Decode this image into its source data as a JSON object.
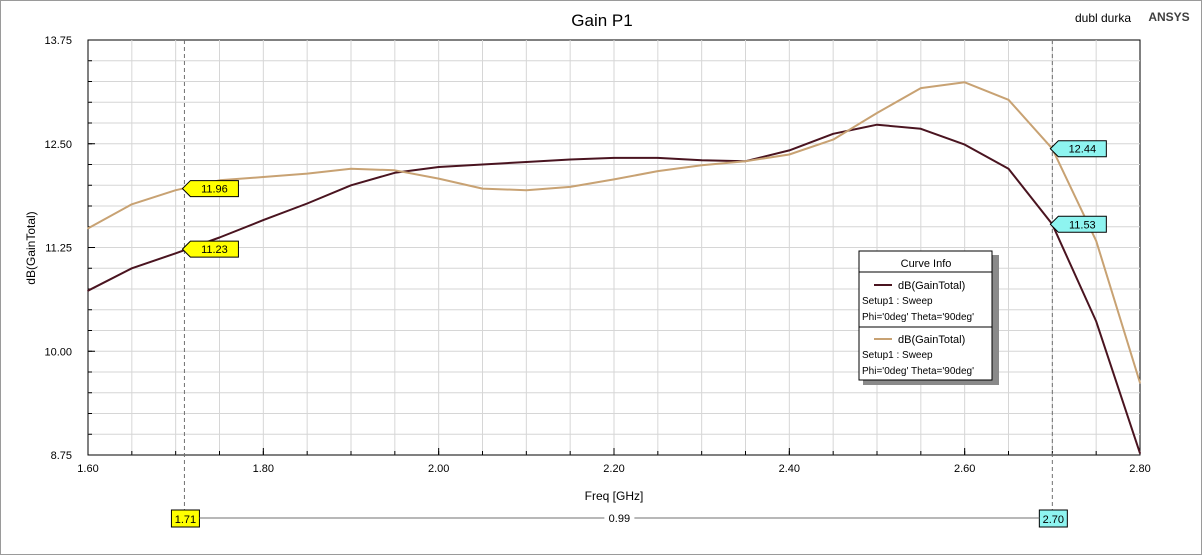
{
  "header": {
    "title": "Gain P1",
    "project_label": "dubl durka",
    "brand": "ANSYS"
  },
  "chart_data": {
    "type": "line",
    "title": "Gain P1",
    "xlabel": "Freq [GHz]",
    "ylabel": "dB(GainTotal)",
    "xlim": [
      1.6,
      2.8
    ],
    "ylim": [
      8.75,
      13.75
    ],
    "x_ticks": [
      "1.60",
      "1.80",
      "2.00",
      "2.20",
      "2.40",
      "2.60",
      "2.80"
    ],
    "y_ticks": [
      "8.75",
      "10.00",
      "11.25",
      "12.50",
      "13.75"
    ],
    "grid": true,
    "legend_position": "right-middle",
    "x": [
      1.6,
      1.65,
      1.7,
      1.75,
      1.8,
      1.85,
      1.9,
      1.95,
      2.0,
      2.05,
      2.1,
      2.15,
      2.2,
      2.25,
      2.3,
      2.35,
      2.4,
      2.45,
      2.5,
      2.55,
      2.6,
      2.65,
      2.7,
      2.75,
      2.8
    ],
    "series": [
      {
        "color": "#4a1420",
        "values": [
          10.73,
          11.0,
          11.18,
          11.37,
          11.58,
          11.78,
          12.0,
          12.15,
          12.22,
          12.25,
          12.28,
          12.31,
          12.33,
          12.33,
          12.3,
          12.29,
          12.42,
          12.62,
          12.73,
          12.68,
          12.49,
          12.2,
          11.53,
          10.36,
          8.77
        ]
      },
      {
        "color": "#c8a273",
        "values": [
          11.48,
          11.77,
          11.94,
          12.06,
          12.1,
          12.14,
          12.2,
          12.18,
          12.08,
          11.96,
          11.94,
          11.98,
          12.07,
          12.17,
          12.24,
          12.29,
          12.37,
          12.55,
          12.87,
          13.17,
          13.24,
          13.03,
          12.44,
          11.33,
          9.62
        ]
      }
    ],
    "legend": {
      "title": "Curve Info",
      "entries": [
        {
          "series_label": "dB(GainTotal)",
          "line1": "Setup1 : Sweep",
          "line2": "Phi='0deg' Theta='90deg'",
          "color": "#4a1420"
        },
        {
          "series_label": "dB(GainTotal)",
          "line1": "Setup1 : Sweep",
          "line2": "Phi='0deg' Theta='90deg'",
          "color": "#c8a273"
        }
      ]
    },
    "markers": [
      {
        "x": 1.71,
        "label": "1.71",
        "color": "#ffff00",
        "values": [
          {
            "value": "11.96",
            "y": 11.96
          },
          {
            "value": "11.23",
            "y": 11.23
          }
        ]
      },
      {
        "x": 2.7,
        "label": "2.70",
        "color": "#8ef4f0",
        "values": [
          {
            "value": "12.44",
            "y": 12.44
          },
          {
            "value": "11.53",
            "y": 11.53
          }
        ]
      }
    ],
    "delta": {
      "value": "0.99"
    }
  }
}
